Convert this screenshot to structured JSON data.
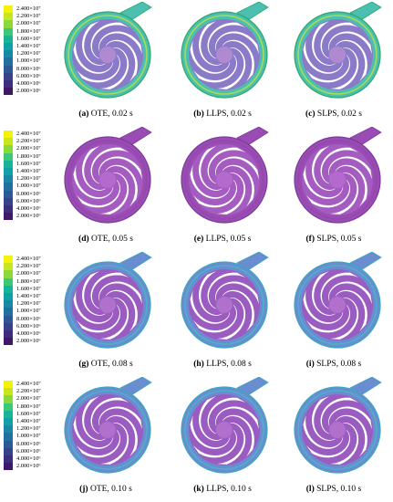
{
  "legend": {
    "ticks": [
      "2.400×10⁷",
      "2.200×10⁷",
      "2.000×10⁷",
      "1.800×10⁷",
      "1.600×10⁷",
      "1.400×10⁷",
      "1.200×10⁷",
      "1.000×10⁷",
      "8.000×10⁶",
      "6.000×10⁶",
      "4.000×10⁶",
      "2.000×10⁶"
    ],
    "colors": [
      "#f2f20a",
      "#c8e61e",
      "#8ad83a",
      "#3cc878",
      "#18b49a",
      "#12a0a8",
      "#1888a6",
      "#2070a0",
      "#2c5896",
      "#38428a",
      "#3e2c7c",
      "#401868"
    ]
  },
  "rows": [
    {
      "panels": [
        {
          "label": "(a)",
          "text": " OTE, 0.02 s",
          "variant": "high"
        },
        {
          "label": "(b)",
          "text": " LLPS, 0.02 s",
          "variant": "high"
        },
        {
          "label": "(c)",
          "text": " SLPS, 0.02 s",
          "variant": "high"
        }
      ]
    },
    {
      "panels": [
        {
          "label": "(d)",
          "text": " OTE, 0.05 s",
          "variant": "low"
        },
        {
          "label": "(e)",
          "text": " LLPS, 0.05 s",
          "variant": "low"
        },
        {
          "label": "(f)",
          "text": " SLPS, 0.05 s",
          "variant": "low"
        }
      ]
    },
    {
      "panels": [
        {
          "label": "(g)",
          "text": " OTE, 0.08 s",
          "variant": "mid"
        },
        {
          "label": "(h)",
          "text": " LLPS, 0.08 s",
          "variant": "mid"
        },
        {
          "label": "(i)",
          "text": " SLPS, 0.08 s",
          "variant": "mid"
        }
      ]
    },
    {
      "panels": [
        {
          "label": "(j)",
          "text": " OTE, 0.10 s",
          "variant": "mid"
        },
        {
          "label": "(k)",
          "text": " LLPS, 0.10 s",
          "variant": "mid"
        },
        {
          "label": "(l)",
          "text": " SLPS, 0.10 s",
          "variant": "mid"
        }
      ]
    }
  ],
  "variants": {
    "high": {
      "volute": "#4cc0b0",
      "voluteEdge": "#2aa86c",
      "impeller": "#8a7ac8",
      "hub": "#b08ad0",
      "accent": "#c0e040"
    },
    "low": {
      "volute": "#9a4cb4",
      "voluteEdge": "#7c3a9c",
      "impeller": "#a45cc0",
      "hub": "#b46acc",
      "accent": "#8e48aa"
    },
    "mid": {
      "volute": "#6a8cd0",
      "voluteEdge": "#3aa8c0",
      "impeller": "#9a5cc0",
      "hub": "#b070cc",
      "accent": "#48b8c8"
    }
  }
}
